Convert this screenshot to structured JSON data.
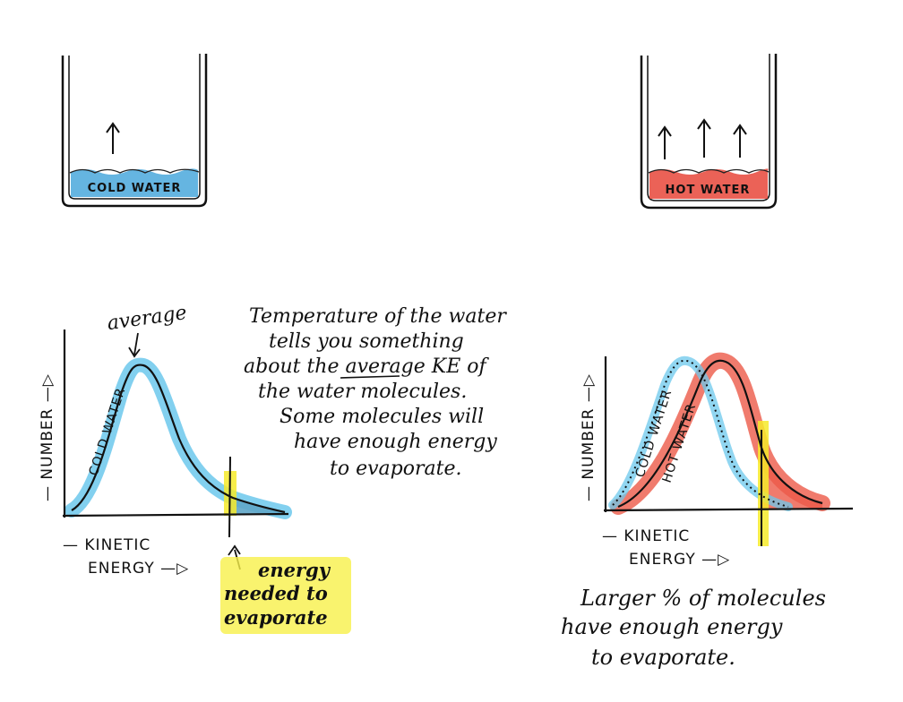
{
  "beakers": {
    "cold": {
      "label": "COLD WATER",
      "fill": "#4aa8dc",
      "arrow_count": 1
    },
    "hot": {
      "label": "HOT WATER",
      "fill": "#e8473a",
      "arrow_count": 3
    }
  },
  "left_graph": {
    "average_label": "average",
    "series_label": "COLD WATER",
    "y_label": "— NUMBER —▷",
    "x_label_line1": "— KINETIC",
    "x_label_line2": "ENERGY —▷",
    "threshold_note_line1": "energy",
    "threshold_note_line2": "needed to",
    "threshold_note_line3": "evaporate",
    "cold_color": "#6cc8ec",
    "threshold_color": "#f6ea2a"
  },
  "middle_text": {
    "line1": "Temperature of the water",
    "line2": "tells you something",
    "line3": "about the average KE of",
    "line4": "the water molecules.",
    "line5": "Some molecules will",
    "line6": "have enough energy",
    "line7": "to evaporate."
  },
  "right_graph": {
    "cold_label": "COLD WATER",
    "hot_label": "HOT WATER",
    "y_label": "— NUMBER —▷",
    "x_label_line1": "— KINETIC",
    "x_label_line2": "ENERGY —▷",
    "hot_color": "#ec5a48",
    "cold_color": "#6cc8ec"
  },
  "bottom_text": {
    "line1": "Larger % of molecules",
    "line2": "have enough energy",
    "line3": "to evaporate."
  }
}
